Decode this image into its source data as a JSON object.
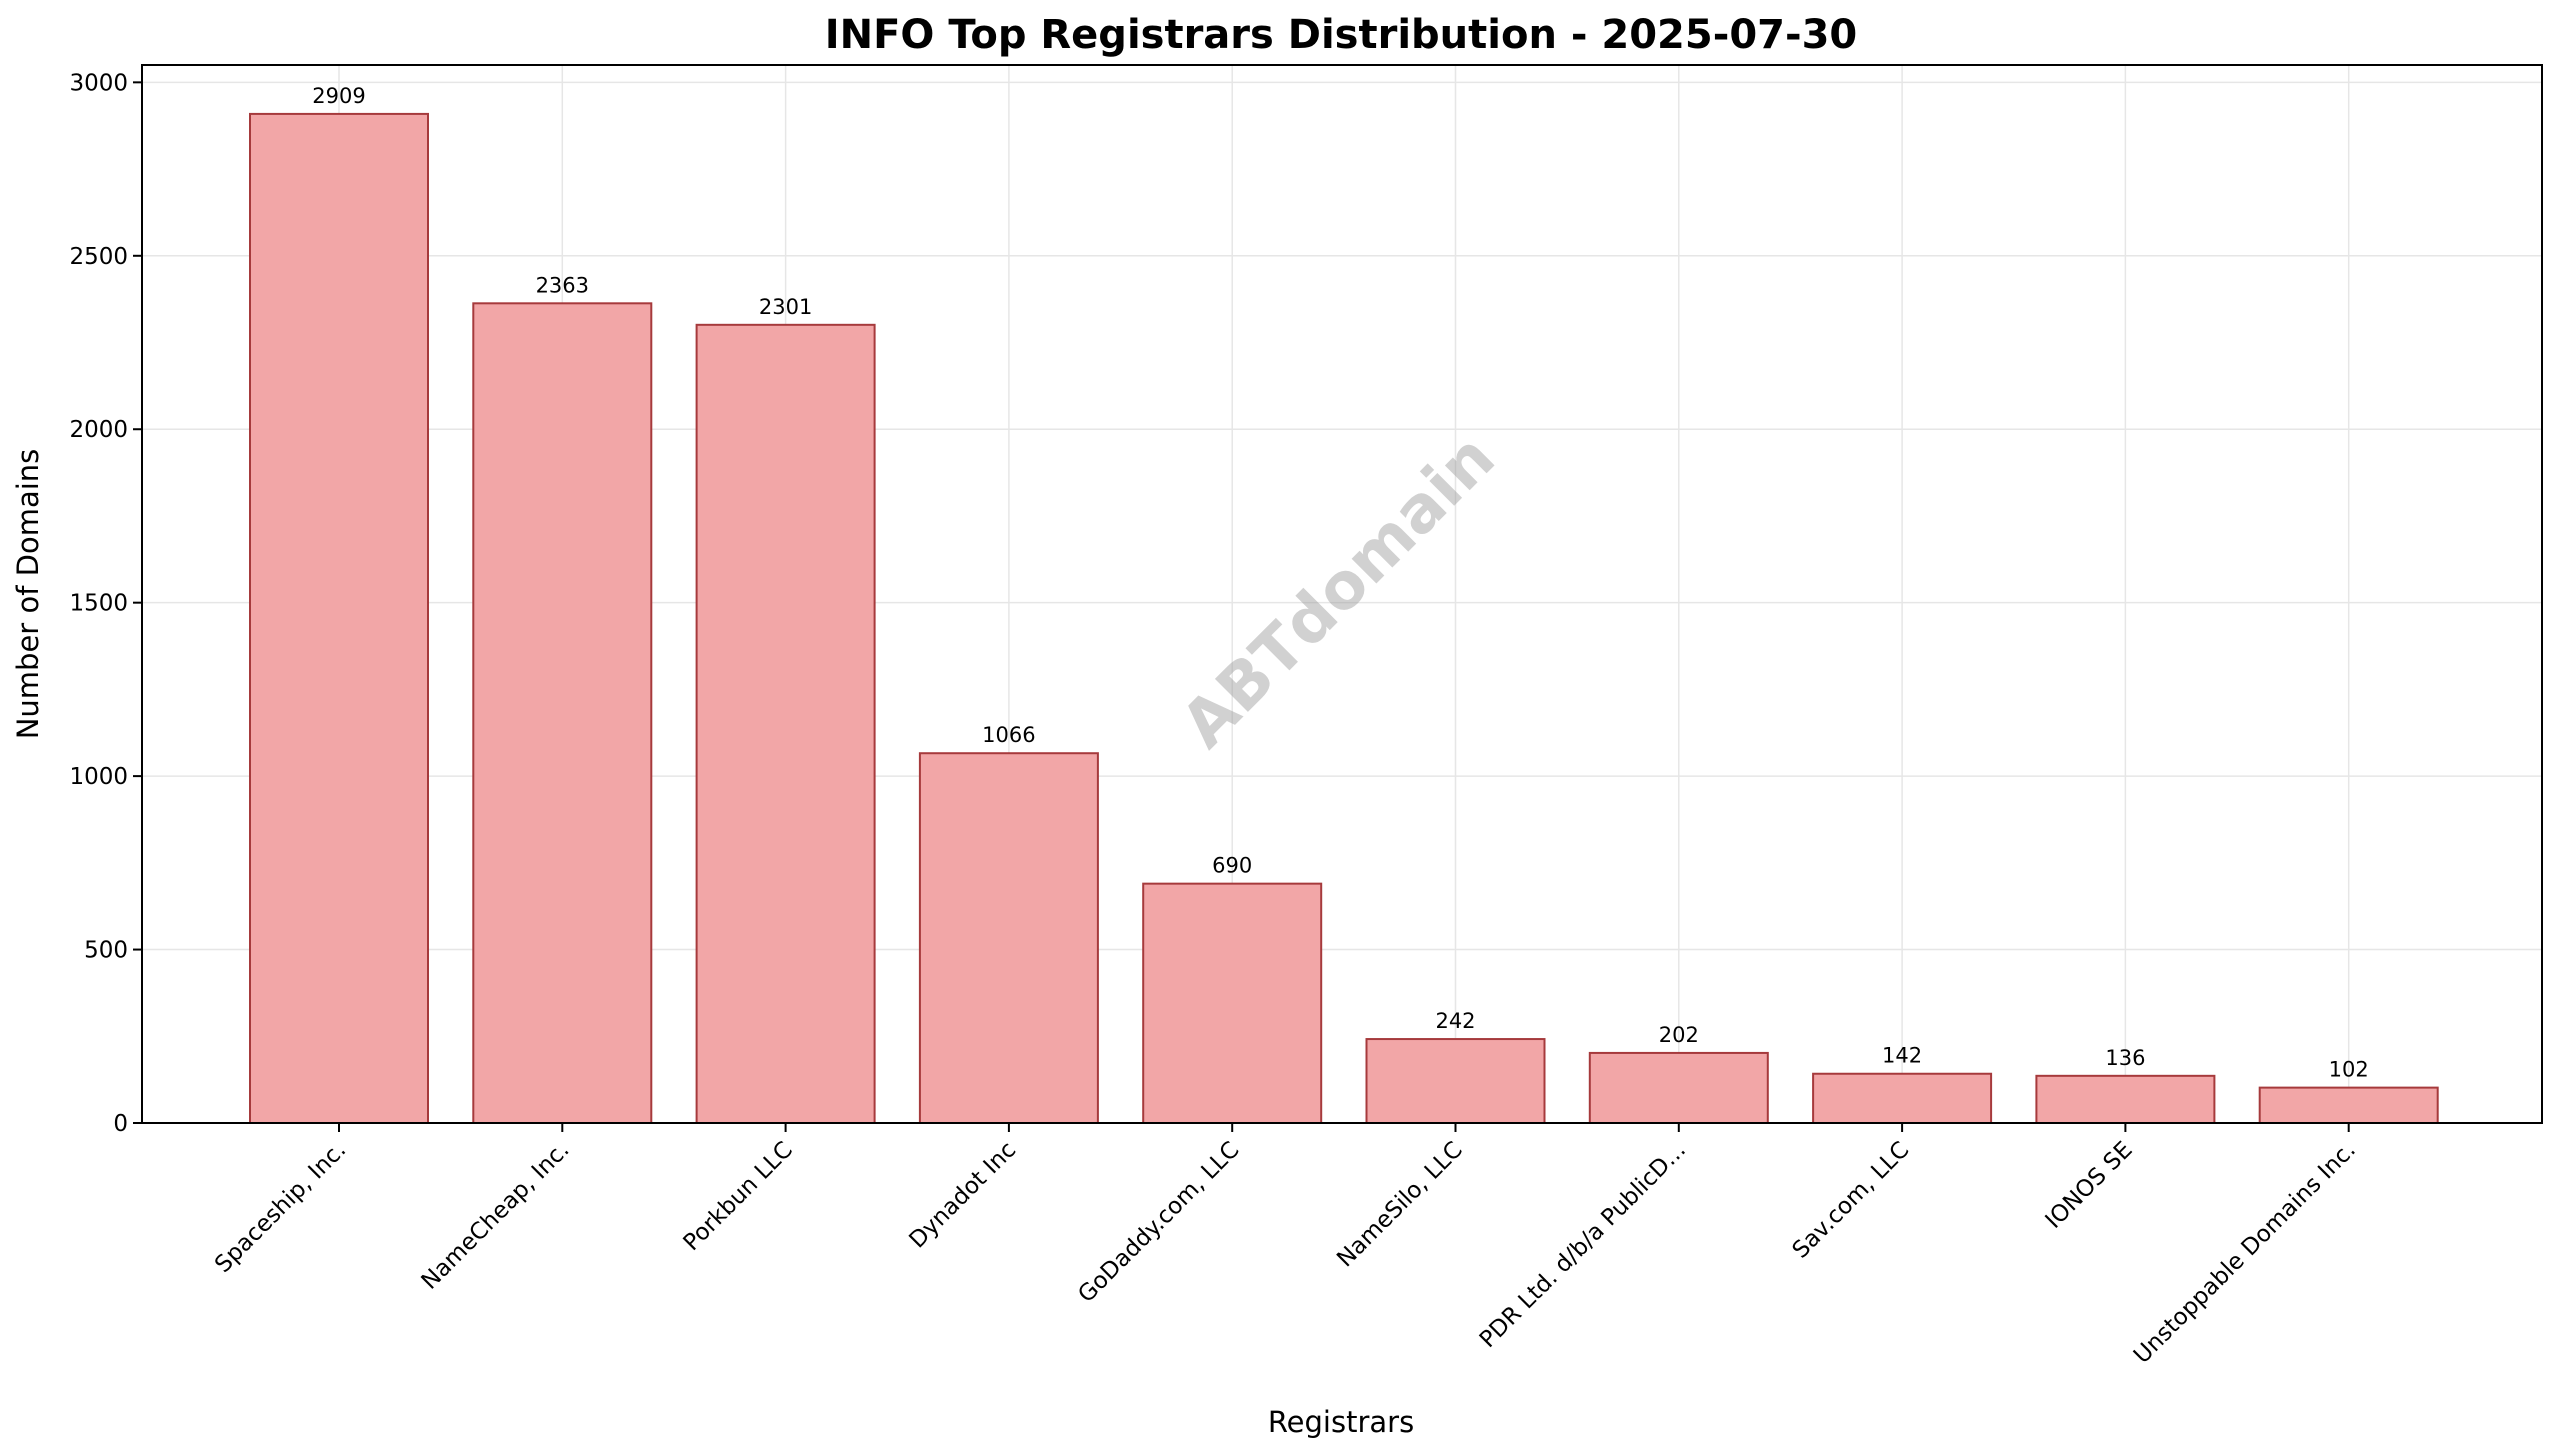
{
  "chart_data": {
    "type": "bar",
    "title": "INFO Top Registrars Distribution - 2025-07-30",
    "xlabel": "Registrars",
    "ylabel": "Number of Domains",
    "categories": [
      "Spaceship, Inc.",
      "NameCheap, Inc.",
      "Porkbun LLC",
      "Dynadot Inc",
      "GoDaddy.com, LLC",
      "NameSilo, LLC",
      "PDR Ltd. d/b/a PublicD...",
      "Sav.com, LLC",
      "IONOS SE",
      "Unstoppable Domains Inc."
    ],
    "values": [
      2909,
      2363,
      2301,
      1066,
      690,
      242,
      202,
      142,
      136,
      102
    ],
    "ylim": [
      0,
      3050
    ],
    "yticks": [
      0,
      500,
      1000,
      1500,
      2000,
      2500,
      3000
    ],
    "grid": true,
    "legend": "none",
    "watermark": "ABTdomain",
    "colors": {
      "bar_fill": "#f2a6a7",
      "bar_edge": "#a63a3c",
      "grid": "#e6e6e6",
      "axis": "#000000"
    }
  }
}
